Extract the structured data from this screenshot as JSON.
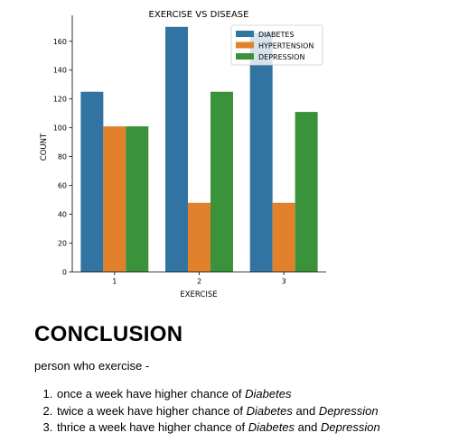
{
  "chart_data": {
    "type": "bar",
    "title": "EXERCISE VS DISEASE",
    "xlabel": "EXERCISE",
    "ylabel": "COUNT",
    "categories": [
      "1",
      "2",
      "3"
    ],
    "series": [
      {
        "name": "DIABETES",
        "values": [
          125,
          170,
          166
        ],
        "color": "#3274a1"
      },
      {
        "name": "HYPERTENSION",
        "values": [
          101,
          48,
          48
        ],
        "color": "#e1812c"
      },
      {
        "name": "DEPRESSION",
        "values": [
          101,
          125,
          111
        ],
        "color": "#3a923a"
      }
    ],
    "yticks": [
      0,
      20,
      40,
      60,
      80,
      100,
      120,
      140,
      160
    ],
    "ylim": [
      0,
      178
    ],
    "grid": false,
    "legend": "top-right"
  },
  "conclusion": {
    "heading": "CONCLUSION",
    "intro": "person who exercise -",
    "points": [
      {
        "text": "once a week have higher chance of ",
        "disease_1": "Diabetes"
      },
      {
        "text": "twice a week have higher chance of ",
        "disease_1": "Diabetes",
        "joiner": " and ",
        "disease_2": "Depression"
      },
      {
        "text": "thrice a week have higher chance of ",
        "disease_1": "Diabetes",
        "joiner": " and ",
        "disease_2": "Depression"
      }
    ]
  }
}
